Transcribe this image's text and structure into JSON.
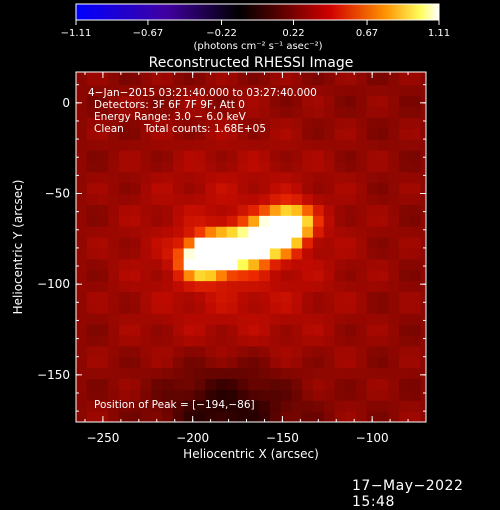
{
  "chart_data": {
    "type": "heatmap",
    "title": "Reconstructed RHESSI Image",
    "xlabel": "Heliocentric X (arcsec)",
    "ylabel": "Heliocentric Y (arcsec)",
    "xlim": [
      -265,
      -70
    ],
    "ylim": [
      -176,
      17
    ],
    "x_ticks": [
      -250,
      -200,
      -150,
      -100
    ],
    "x_tick_labels": [
      "−250",
      "−200",
      "−150",
      "−100"
    ],
    "y_ticks": [
      0,
      -50,
      -100,
      -150
    ],
    "y_tick_labels": [
      "0",
      "−50",
      "−100",
      "−150"
    ],
    "colorbar": {
      "range": [
        -1.11,
        1.11
      ],
      "ticks": [
        -1.11,
        -0.67,
        -0.22,
        0.22,
        0.67,
        1.11
      ],
      "tick_labels": [
        "−1.11",
        "−0.67",
        "−0.22",
        "0.22",
        "0.67",
        "1.11"
      ],
      "units_label": "(photons cm⁻² s⁻¹ asec⁻²)",
      "colormap": "rainbow-to-hot"
    },
    "annotations": {
      "time_range": "4−Jan−2015 03:21:40.000 to 03:27:40.000",
      "detectors": "Detectors: 3F 6F 7F 9F, Att 0",
      "energy_range": "Energy Range: 3.0 − 6.0 keV",
      "clean_label": "Clean",
      "total_counts": "Total counts: 1.68E+05",
      "peak_position": "Position of Peak = [−194,−86]"
    },
    "sources": [
      {
        "x": -194,
        "y": -86,
        "peak": 1.11
      },
      {
        "x": -185,
        "y": -82,
        "peak": 1.0
      },
      {
        "x": -172,
        "y": -80,
        "peak": 0.8
      },
      {
        "x": -160,
        "y": -76,
        "peak": 0.72
      },
      {
        "x": -150,
        "y": -70,
        "peak": 0.78
      },
      {
        "x": -145,
        "y": -65,
        "peak": 0.74
      }
    ],
    "background_level": 0.3,
    "colors": {
      "low": "#0000ff",
      "mid": "#000000",
      "hot_dark": "#8b0000",
      "hot_red": "#e00000",
      "hot_orange": "#ff8000",
      "hot_yellow": "#ffff40",
      "hot_white": "#ffffff"
    }
  },
  "footer": {
    "date": "17−May−2022 15:48"
  }
}
